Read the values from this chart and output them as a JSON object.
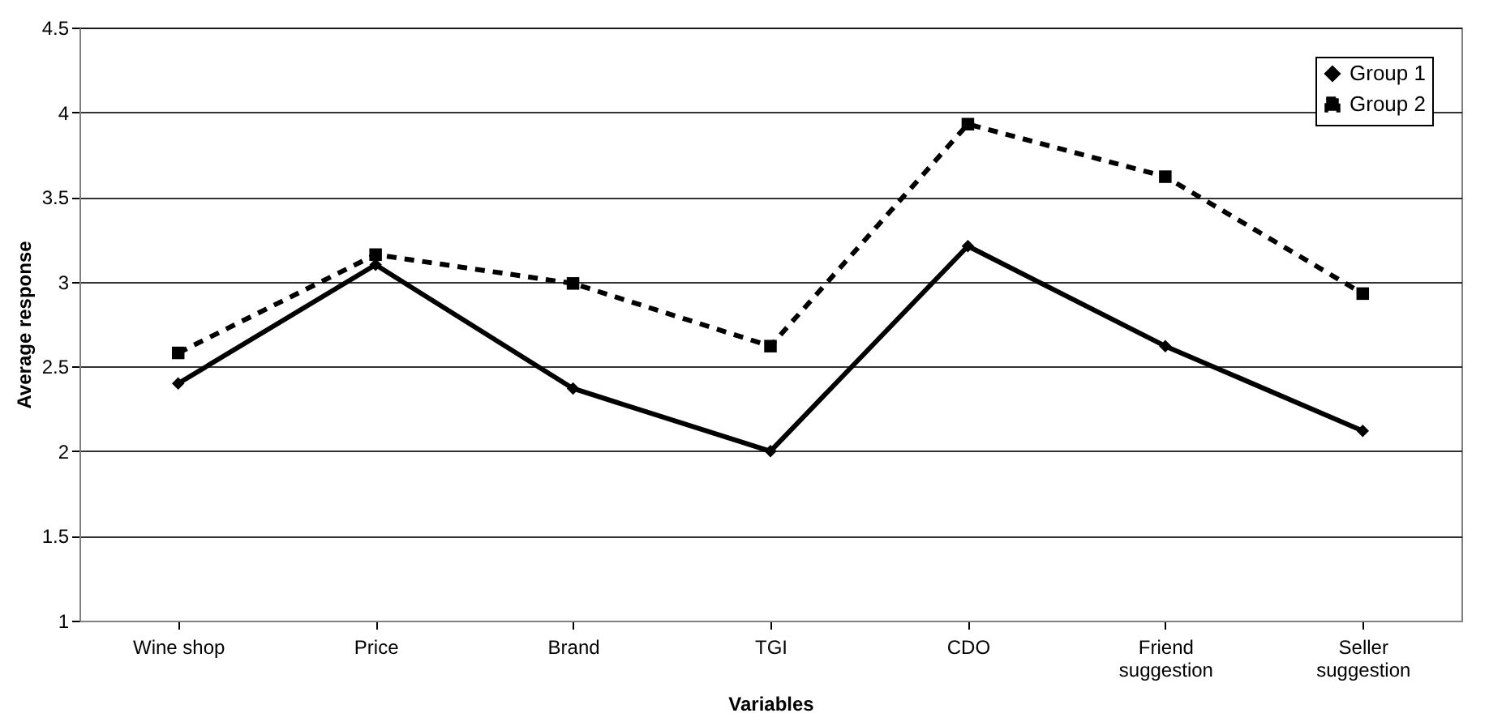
{
  "chart_data": {
    "type": "line",
    "xlabel": "Variables",
    "ylabel": "Average response",
    "categories": [
      "Wine shop",
      "Price",
      "Brand",
      "TGI",
      "CDO",
      "Friend suggestion",
      "Seller suggestion"
    ],
    "series": [
      {
        "name": "Group 1",
        "color": "#000000",
        "marker": "diamond",
        "line_style": "solid",
        "values": [
          2.4,
          3.1,
          2.37,
          2.0,
          3.21,
          2.62,
          2.12
        ]
      },
      {
        "name": "Group 2",
        "color": "#000000",
        "marker": "square",
        "line_style": "dashed",
        "values": [
          2.58,
          3.16,
          2.99,
          2.62,
          3.93,
          3.62,
          2.93
        ]
      }
    ],
    "ylim": [
      1,
      4.5
    ],
    "yticks": [
      1,
      1.5,
      2,
      2.5,
      3,
      3.5,
      4,
      4.5
    ],
    "grid": "y",
    "legend": "top right"
  }
}
